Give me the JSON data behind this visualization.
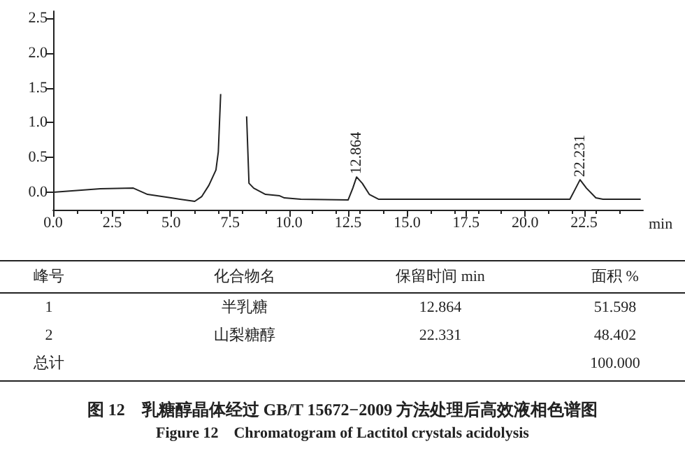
{
  "chart_data": {
    "type": "line",
    "xlabel": "min",
    "x": [
      0,
      2.0,
      3.4,
      4.0,
      5.0,
      6.0,
      6.3,
      6.6,
      6.9,
      7.0,
      7.1,
      7.15,
      8.15,
      8.2,
      8.3,
      8.5,
      9.0,
      9.6,
      9.8,
      10.5,
      12.5,
      12.7,
      12.86,
      13.1,
      13.4,
      13.8,
      18,
      21.9,
      22.1,
      22.33,
      22.6,
      23.0,
      23.3,
      24.9
    ],
    "series": [
      {
        "color": "#222222",
        "values": [
          0,
          0.05,
          0.06,
          -0.03,
          -0.08,
          -0.13,
          -0.06,
          0.1,
          0.32,
          0.58,
          1.41,
          null,
          null,
          1.09,
          0.13,
          0.06,
          -0.03,
          -0.05,
          -0.08,
          -0.1,
          -0.11,
          0.06,
          0.22,
          0.13,
          -0.03,
          -0.1,
          -0.1,
          -0.1,
          0.03,
          0.18,
          0.06,
          -0.08,
          -0.1,
          -0.1
        ]
      }
    ],
    "xlim": [
      0,
      25
    ],
    "ylim": [
      -0.25,
      2.6
    ],
    "xticks": [
      {
        "value": 0,
        "label": "0.0"
      },
      2.5,
      {
        "value": 5,
        "label": "5.0"
      },
      7.5,
      {
        "value": 10,
        "label": "10.0"
      },
      12.5,
      {
        "value": 15,
        "label": "15.0"
      },
      17.5,
      {
        "value": 20,
        "label": "20.0"
      },
      22.5
    ],
    "yticks": [
      {
        "value": 0,
        "label": "0.0"
      },
      0.5,
      {
        "value": 1,
        "label": "1.0"
      },
      1.5,
      {
        "value": 2,
        "label": "2.0"
      },
      2.5
    ],
    "annotations": [
      {
        "text": "12.864",
        "x": 12.86,
        "y": 0.22
      },
      {
        "text": "22.231",
        "x": 22.33,
        "y": 0.18
      },
      "峰号",
      "化合物名",
      "保留时间 min",
      "面积 %",
      "1",
      "半乳糖",
      "12.864",
      "51.598",
      "2",
      "山梨糖醇",
      "22.331",
      "48.402",
      "总计",
      "100.000",
      "图 12　乳糖醇晶体经过 GB/T 15672−2009 方法处理后高效液相色谱图",
      "Figure 12　Chromatogram of Lactitol crystals acidolysis"
    ]
  }
}
